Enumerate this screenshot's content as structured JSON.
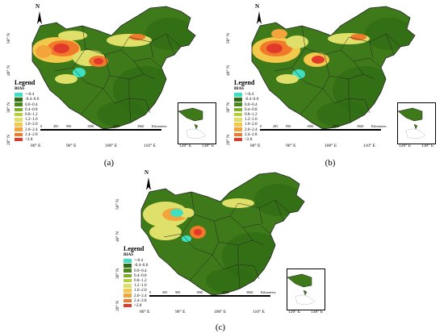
{
  "legend": {
    "title": "Legend",
    "subtitle": "BIAS",
    "items": [
      {
        "label": "<-0.4",
        "color": "#3fe0c0"
      },
      {
        "label": "-0.4–0.0",
        "color": "#2f6b12"
      },
      {
        "label": "0.0–0.4",
        "color": "#4a8a1c"
      },
      {
        "label": "0.4–0.8",
        "color": "#7fae2a"
      },
      {
        "label": "0.8–1.2",
        "color": "#b7cf3a"
      },
      {
        "label": "1.2–1.6",
        "color": "#dfe06a"
      },
      {
        "label": "1.6–2.0",
        "color": "#f2c94a"
      },
      {
        "label": "2.0–2.4",
        "color": "#f3a43a"
      },
      {
        "label": "2.4–2.8",
        "color": "#f07a2a"
      },
      {
        "label": ">2.8",
        "color": "#e23a2a"
      }
    ]
  },
  "latitudes": [
    "50° N",
    "40° N",
    "30° N",
    "20° N"
  ],
  "longitudes": [
    "80° E",
    "90° E",
    "100° E",
    "110° E",
    "120° E",
    "130° E"
  ],
  "scale_labels": [
    "0",
    "495",
    "990",
    "1980",
    "2970",
    "3960",
    "Kilometers"
  ],
  "north": "N",
  "panels": [
    {
      "caption": "(a)"
    },
    {
      "caption": "(b)"
    },
    {
      "caption": "(c)"
    }
  ],
  "colors": {
    "land_base": "#3f7a1a",
    "land_dark": "#2f6b12",
    "border": "#222222"
  }
}
